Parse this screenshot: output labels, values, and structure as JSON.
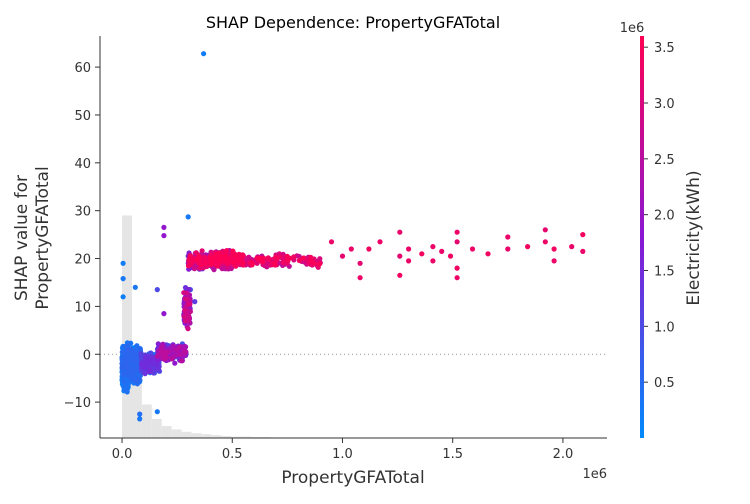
{
  "chart_data": {
    "type": "scatter",
    "title": "SHAP Dependence: PropertyGFATotal",
    "xlabel": "PropertyGFATotal",
    "ylabel_line1": "SHAP value for",
    "ylabel_line2": "PropertyGFATotal",
    "x_offset_text": "1e6",
    "xlim": [
      -0.1,
      2.2
    ],
    "ylim": [
      -17.5,
      66.5
    ],
    "x_ticks": [
      0.0,
      0.5,
      1.0,
      1.5,
      2.0
    ],
    "x_tick_labels": [
      "0.0",
      "0.5",
      "1.0",
      "1.5",
      "2.0"
    ],
    "y_ticks": [
      -10,
      0,
      10,
      20,
      30,
      40,
      50,
      60
    ],
    "y_tick_labels": [
      "−10",
      "0",
      "10",
      "20",
      "30",
      "40",
      "50",
      "60"
    ],
    "zero_line": true,
    "colorbar": {
      "label": "Electricity(kWh)",
      "offset_text": "1e6",
      "range": [
        0.0,
        3.6
      ],
      "ticks": [
        0.5,
        1.0,
        1.5,
        2.0,
        2.5,
        3.0,
        3.5
      ],
      "tick_labels": [
        "0.5",
        "1.0",
        "1.5",
        "2.0",
        "2.5",
        "3.0",
        "3.5"
      ],
      "color_low": "#008afb",
      "color_mid": "#8a17d3",
      "color_high": "#ff0052"
    },
    "histogram": {
      "color": "#e5e5e5",
      "bin_starts": [
        0.0,
        0.045,
        0.09,
        0.135,
        0.18,
        0.225,
        0.27,
        0.315,
        0.36,
        0.405,
        0.45,
        0.495,
        0.54,
        0.585,
        0.63
      ],
      "bin_width": 0.045,
      "heights": [
        46.5,
        13.0,
        7.0,
        4.0,
        2.5,
        1.8,
        1.3,
        1.0,
        0.8,
        0.6,
        0.4,
        0.3,
        0.3,
        0.2,
        0.2
      ]
    },
    "outliers": [
      {
        "x": 0.37,
        "y": 62.8,
        "e": 0.2
      },
      {
        "x": 0.3,
        "y": 28.7,
        "e": 0.3
      },
      {
        "x": 0.19,
        "y": 26.5,
        "e": 1.9
      },
      {
        "x": 0.19,
        "y": 24.8,
        "e": 1.9
      },
      {
        "x": 0.005,
        "y": 19.0,
        "e": 0.2
      },
      {
        "x": 0.005,
        "y": 15.8,
        "e": 0.3
      },
      {
        "x": 0.06,
        "y": 14.0,
        "e": 0.3
      },
      {
        "x": 0.16,
        "y": 13.5,
        "e": 1.0
      },
      {
        "x": 0.005,
        "y": 12.0,
        "e": 0.2
      },
      {
        "x": 0.19,
        "y": 8.5,
        "e": 1.9
      },
      {
        "x": 0.16,
        "y": -12.0,
        "e": 0.3
      },
      {
        "x": 0.08,
        "y": -13.5,
        "e": 0.3
      },
      {
        "x": 0.08,
        "y": -12.5,
        "e": 0.4
      },
      {
        "x": 0.3,
        "y": 20.5,
        "e": 0.6
      },
      {
        "x": 0.3,
        "y": 19.0,
        "e": 0.4
      },
      {
        "x": 0.31,
        "y": 13.5,
        "e": 1.0
      },
      {
        "x": 0.33,
        "y": 11.0,
        "e": 1.2
      }
    ],
    "sparse_points": [
      {
        "x": 0.95,
        "y": 23.5,
        "e": 3.3
      },
      {
        "x": 1.0,
        "y": 20.5,
        "e": 3.2
      },
      {
        "x": 1.04,
        "y": 22.0,
        "e": 3.3
      },
      {
        "x": 1.08,
        "y": 19.0,
        "e": 3.2
      },
      {
        "x": 1.08,
        "y": 16.0,
        "e": 3.3
      },
      {
        "x": 1.12,
        "y": 22.0,
        "e": 3.4
      },
      {
        "x": 1.17,
        "y": 23.5,
        "e": 3.3
      },
      {
        "x": 1.26,
        "y": 25.5,
        "e": 3.3
      },
      {
        "x": 1.26,
        "y": 20.5,
        "e": 3.2
      },
      {
        "x": 1.26,
        "y": 16.5,
        "e": 3.4
      },
      {
        "x": 1.3,
        "y": 22.0,
        "e": 3.3
      },
      {
        "x": 1.3,
        "y": 19.5,
        "e": 3.3
      },
      {
        "x": 1.36,
        "y": 21.0,
        "e": 3.4
      },
      {
        "x": 1.41,
        "y": 22.5,
        "e": 3.3
      },
      {
        "x": 1.41,
        "y": 19.5,
        "e": 3.3
      },
      {
        "x": 1.45,
        "y": 21.5,
        "e": 3.3
      },
      {
        "x": 1.49,
        "y": 20.5,
        "e": 3.4
      },
      {
        "x": 1.52,
        "y": 25.5,
        "e": 3.3
      },
      {
        "x": 1.52,
        "y": 23.5,
        "e": 3.2
      },
      {
        "x": 1.52,
        "y": 18.0,
        "e": 3.4
      },
      {
        "x": 1.52,
        "y": 16.0,
        "e": 3.3
      },
      {
        "x": 1.59,
        "y": 22.0,
        "e": 3.3
      },
      {
        "x": 1.66,
        "y": 21.0,
        "e": 3.4
      },
      {
        "x": 1.75,
        "y": 24.5,
        "e": 3.3
      },
      {
        "x": 1.75,
        "y": 22.0,
        "e": 3.3
      },
      {
        "x": 1.84,
        "y": 22.5,
        "e": 3.4
      },
      {
        "x": 1.92,
        "y": 26.0,
        "e": 3.2
      },
      {
        "x": 1.92,
        "y": 23.5,
        "e": 3.3
      },
      {
        "x": 1.96,
        "y": 22.0,
        "e": 3.4
      },
      {
        "x": 1.96,
        "y": 19.5,
        "e": 3.3
      },
      {
        "x": 2.04,
        "y": 22.5,
        "e": 3.3
      },
      {
        "x": 2.09,
        "y": 25.0,
        "e": 3.4
      },
      {
        "x": 2.09,
        "y": 21.5,
        "e": 3.3
      }
    ],
    "point_clusters": [
      {
        "x_range": [
          0.0,
          0.085
        ],
        "y_center": -2.0,
        "y_spread": 5.0,
        "e_range": [
          0.05,
          0.6
        ],
        "count": 520
      },
      {
        "x_range": [
          0.0,
          0.03
        ],
        "y_center": -5.0,
        "y_spread": 4.0,
        "e_range": [
          0.05,
          0.4
        ],
        "count": 120
      },
      {
        "x_range": [
          0.085,
          0.17
        ],
        "y_center": -2.0,
        "y_spread": 2.6,
        "e_range": [
          0.3,
          1.5
        ],
        "count": 220
      },
      {
        "x_range": [
          0.16,
          0.29
        ],
        "y_center": 0.5,
        "y_spread": 2.8,
        "e_range": [
          0.8,
          2.6
        ],
        "count": 170
      },
      {
        "x_range": [
          0.28,
          0.31
        ],
        "y_center": 9.5,
        "y_spread": 6.0,
        "e_range": [
          1.2,
          3.0
        ],
        "count": 90
      },
      {
        "x_range": [
          0.3,
          0.52
        ],
        "y_center": 19.5,
        "y_spread": 2.3,
        "e_range": [
          1.2,
          3.6
        ],
        "count": 380
      },
      {
        "x_range": [
          0.4,
          0.55
        ],
        "y_center": 20.0,
        "y_spread": 2.0,
        "e_range": [
          2.6,
          3.6
        ],
        "count": 160
      },
      {
        "x_range": [
          0.52,
          0.9
        ],
        "y_center": 19.5,
        "y_spread": 1.9,
        "e_range": [
          2.6,
          3.6
        ],
        "count": 140
      }
    ]
  }
}
